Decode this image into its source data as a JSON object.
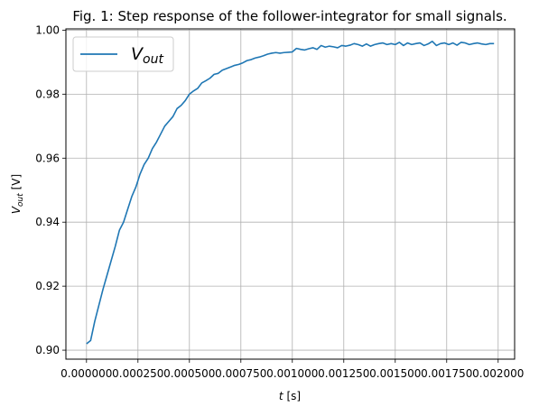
{
  "chart_data": {
    "type": "line",
    "title": "Fig. 1: Step response of the follower-integrator for small signals.",
    "xlabel": {
      "base": "t",
      "unit": " [s]"
    },
    "ylabel": {
      "base": "V",
      "sub": "out",
      "unit": " [V]"
    },
    "xlim": [
      -0.0001,
      0.00208
    ],
    "ylim": [
      0.8972,
      1.0004
    ],
    "xticks": [
      "0.000000",
      "0.000250",
      "0.000500",
      "0.000750",
      "0.001000",
      "0.001250",
      "0.001500",
      "0.001750",
      "0.002000"
    ],
    "yticks": [
      "0.90",
      "0.92",
      "0.94",
      "0.96",
      "0.98",
      "1.00"
    ],
    "grid": true,
    "legend": {
      "position": "top-left",
      "label_base": "V",
      "label_sub": "out"
    },
    "color": "#1f77b4",
    "series": [
      {
        "name": "V_out",
        "x": [
          0.0,
          2e-05,
          4e-05,
          6e-05,
          8e-05,
          0.0001,
          0.00012,
          0.00014,
          0.00016,
          0.00018,
          0.0002,
          0.00022,
          0.00024,
          0.00026,
          0.00028,
          0.0003,
          0.00032,
          0.00034,
          0.00036,
          0.00038,
          0.0004,
          0.00042,
          0.00044,
          0.00046,
          0.00048,
          0.0005,
          0.00052,
          0.00054,
          0.00056,
          0.00058,
          0.0006,
          0.00062,
          0.00064,
          0.00066,
          0.00068,
          0.0007,
          0.00072,
          0.00074,
          0.00076,
          0.00078,
          0.0008,
          0.00082,
          0.00084,
          0.00086,
          0.00088,
          0.0009,
          0.00092,
          0.00094,
          0.00096,
          0.00098,
          0.001,
          0.00102,
          0.00104,
          0.00106,
          0.00108,
          0.0011,
          0.00112,
          0.00114,
          0.00116,
          0.00118,
          0.0012,
          0.00122,
          0.00124,
          0.00126,
          0.00128,
          0.0013,
          0.00132,
          0.00134,
          0.00136,
          0.00138,
          0.0014,
          0.00142,
          0.00144,
          0.00146,
          0.00148,
          0.0015,
          0.00152,
          0.00154,
          0.00156,
          0.00158,
          0.0016,
          0.00162,
          0.00164,
          0.00166,
          0.00168,
          0.0017,
          0.00172,
          0.00174,
          0.00176,
          0.00178,
          0.0018,
          0.00182,
          0.00184,
          0.00186,
          0.00188,
          0.0019,
          0.00192,
          0.00194,
          0.00196,
          0.00198
        ],
        "y": [
          0.902,
          0.903,
          0.909,
          0.914,
          0.919,
          0.9235,
          0.928,
          0.9325,
          0.9375,
          0.94,
          0.944,
          0.948,
          0.951,
          0.955,
          0.958,
          0.96,
          0.963,
          0.965,
          0.9675,
          0.97,
          0.9715,
          0.973,
          0.9755,
          0.9765,
          0.978,
          0.98,
          0.981,
          0.9818,
          0.9835,
          0.9842,
          0.985,
          0.9862,
          0.9865,
          0.9875,
          0.988,
          0.9885,
          0.989,
          0.9893,
          0.9898,
          0.9905,
          0.9908,
          0.9913,
          0.9916,
          0.992,
          0.9925,
          0.9928,
          0.993,
          0.9928,
          0.993,
          0.9931,
          0.9932,
          0.9943,
          0.994,
          0.9938,
          0.9942,
          0.9945,
          0.994,
          0.9952,
          0.9947,
          0.995,
          0.9948,
          0.9945,
          0.9952,
          0.995,
          0.9953,
          0.9958,
          0.9955,
          0.995,
          0.9957,
          0.995,
          0.9955,
          0.9958,
          0.996,
          0.9955,
          0.9958,
          0.9955,
          0.9962,
          0.9952,
          0.996,
          0.9955,
          0.9958,
          0.996,
          0.9952,
          0.9957,
          0.9965,
          0.9952,
          0.9958,
          0.996,
          0.9955,
          0.996,
          0.9953,
          0.9962,
          0.996,
          0.9955,
          0.9958,
          0.996,
          0.9957,
          0.9955,
          0.9958,
          0.9958
        ]
      }
    ]
  }
}
